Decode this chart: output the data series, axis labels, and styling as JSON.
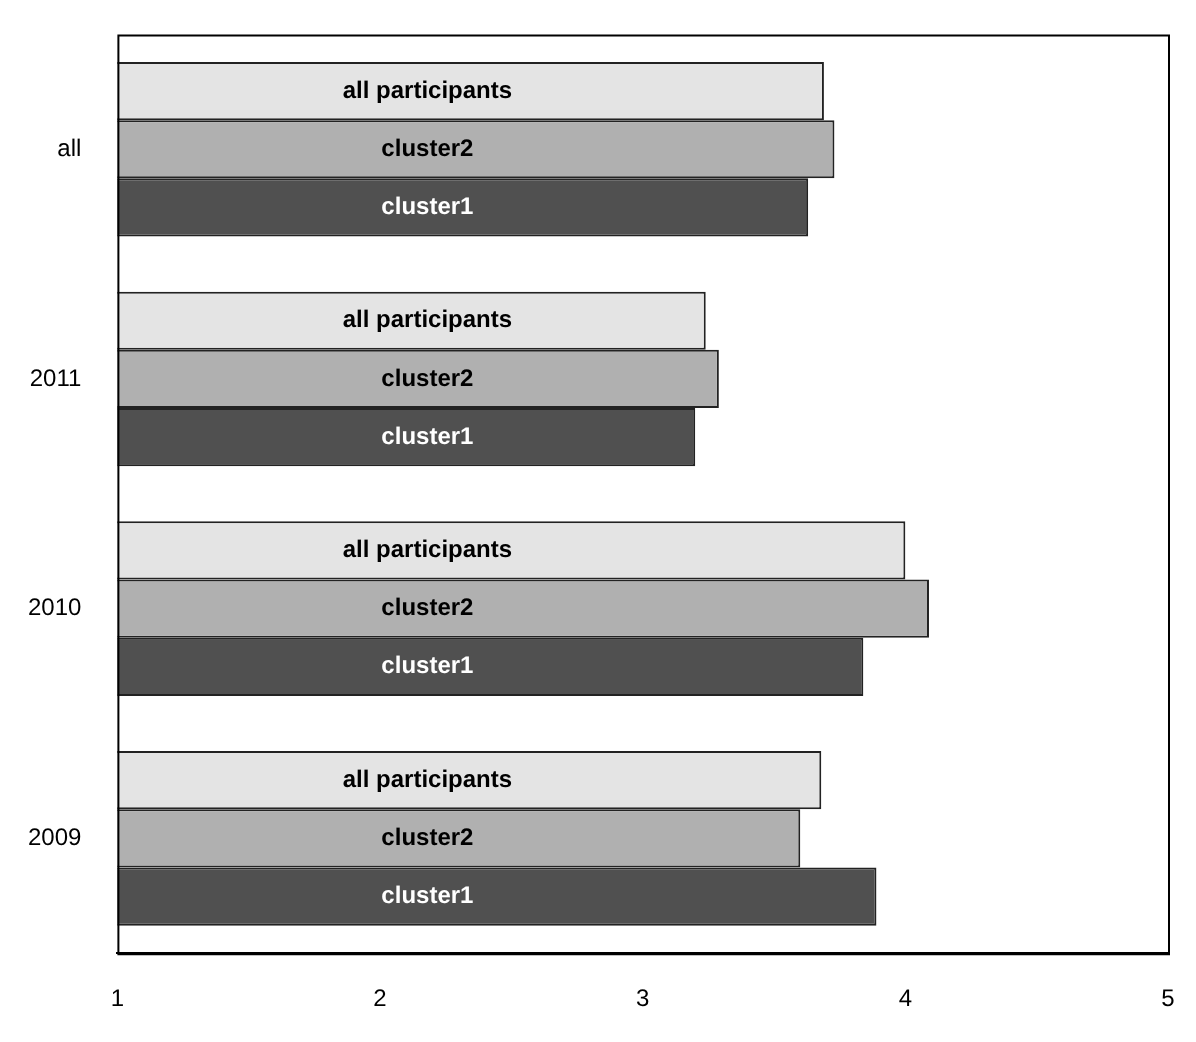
{
  "chart_data": {
    "type": "bar",
    "orientation": "horizontal",
    "categories": [
      "all",
      "2011",
      "2010",
      "2009"
    ],
    "series": [
      {
        "name": "all participants",
        "color": "#e4e4e4",
        "values": [
          3.69,
          3.24,
          4.0,
          3.68
        ]
      },
      {
        "name": "cluster2",
        "color": "#b0b0b0",
        "values": [
          3.73,
          3.29,
          4.09,
          3.6
        ]
      },
      {
        "name": "cluster1",
        "color": "#505050",
        "values": [
          3.63,
          3.2,
          3.84,
          3.89
        ]
      }
    ],
    "xlim": [
      1,
      5
    ],
    "xticks": [
      1,
      2,
      3,
      4,
      5
    ],
    "grid": false,
    "legend": false
  }
}
